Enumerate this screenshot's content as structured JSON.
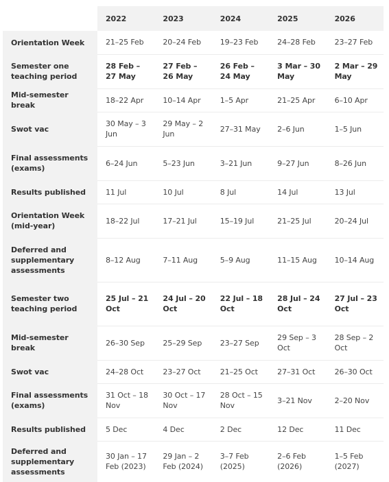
{
  "table": {
    "years": [
      "2022",
      "2023",
      "2024",
      "2025",
      "2026"
    ],
    "rows": [
      {
        "label": "Orientation Week",
        "values": [
          "21–25 Feb",
          "20–24 Feb",
          "19–23 Feb",
          "24–28 Feb",
          "23–27 Feb"
        ]
      },
      {
        "label": "Semester one teaching period",
        "values": [
          "28 Feb – 27 May",
          "27 Feb – 26 May",
          "26 Feb – 24 May",
          "3 Mar – 30 May",
          "2 Mar – 29 May"
        ]
      },
      {
        "label": "Mid-semester break",
        "values": [
          "18–22 Apr",
          "10–14 Apr",
          "1–5 Apr",
          "21–25  Apr",
          "6–10 Apr"
        ]
      },
      {
        "label": "Swot vac",
        "values": [
          "30 May – 3 Jun",
          "29 May – 2 Jun",
          "27–31 May",
          "2–6 Jun",
          "1–5 Jun"
        ]
      },
      {
        "label": "Final assessments (exams)",
        "values": [
          "6–24 Jun",
          "5–23 Jun",
          "3–21 Jun",
          "9–27 Jun",
          "8–26 Jun"
        ]
      },
      {
        "label": "Results published",
        "values": [
          "11 Jul",
          "10 Jul",
          "8 Jul",
          "14 Jul",
          "13 Jul"
        ]
      },
      {
        "label": "Orientation Week (mid-year)",
        "values": [
          "18–22 Jul",
          "17–21 Jul",
          "15–19 Jul",
          "21–25 Jul",
          "20–24 Jul"
        ]
      },
      {
        "label": "Deferred and supplementary assessments",
        "values": [
          "8–12 Aug",
          "7–11 Aug",
          "5–9 Aug",
          "11–15 Aug",
          "10–14 Aug"
        ]
      },
      {
        "label": "Semester two teaching period",
        "values": [
          "25 Jul – 21 Oct",
          "24 Jul – 20 Oct",
          "22 Jul – 18 Oct",
          "28 Jul – 24 Oct",
          "27 Jul – 23 Oct"
        ]
      },
      {
        "label": "Mid-semester break",
        "values": [
          "26–30 Sep",
          "25–29 Sep",
          "23–27 Sep",
          "29 Sep – 3 Oct",
          "28 Sep – 2 Oct"
        ]
      },
      {
        "label": "Swot vac",
        "values": [
          "24–28 Oct",
          "23–27 Oct",
          "21–25 Oct",
          "27–31 Oct",
          "26–30 Oct"
        ]
      },
      {
        "label": "Final assessments (exams)",
        "values": [
          "31 Oct – 18 Nov",
          "30 Oct – 17 Nov",
          "28 Oct – 15 Nov",
          "3–21 Nov",
          "2–20 Nov"
        ]
      },
      {
        "label": "Results published",
        "values": [
          "5 Dec",
          "4 Dec",
          "2 Dec",
          "12 Dec",
          "11 Dec"
        ]
      },
      {
        "label": "Deferred and supplementary assessments",
        "values": [
          "30 Jan – 17 Feb (2023)",
          "29 Jan – 2 Feb (2024)",
          "3–7 Feb (2025)",
          "2–6 Feb (2026)",
          "1–5 Feb (2027)"
        ]
      }
    ]
  }
}
